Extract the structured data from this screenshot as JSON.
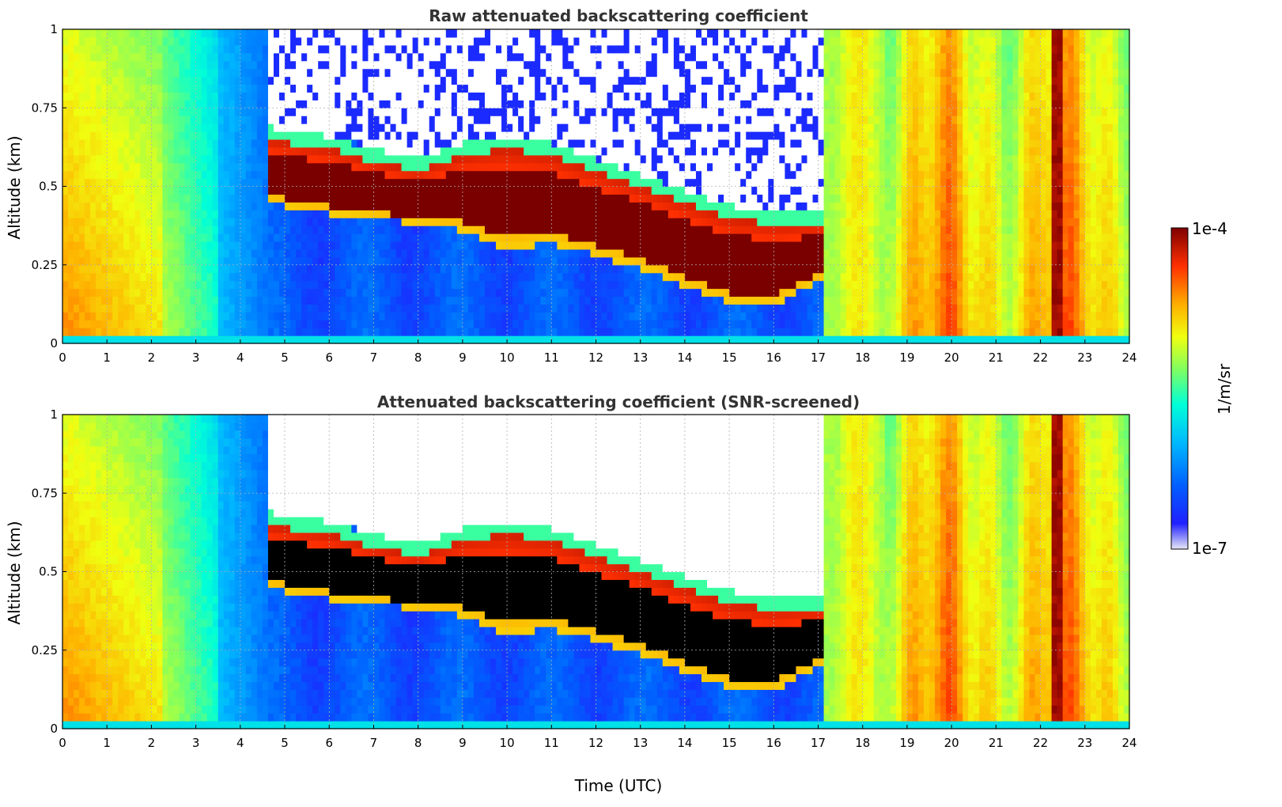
{
  "chart_data": [
    {
      "type": "heatmap",
      "title": "Raw attenuated backscattering coefficient",
      "xlabel": "",
      "ylabel": "Altitude (km)",
      "xlim": [
        0,
        24
      ],
      "ylim": [
        0,
        1
      ],
      "xticks": [
        "0",
        "1",
        "2",
        "3",
        "4",
        "5",
        "6",
        "7",
        "8",
        "9",
        "10",
        "11",
        "12",
        "13",
        "14",
        "15",
        "16",
        "17",
        "18",
        "19",
        "20",
        "21",
        "22",
        "23",
        "24"
      ],
      "yticks": [
        "0",
        "0.25",
        "0.5",
        "0.75",
        "1"
      ],
      "grid": true,
      "screened": false,
      "cloud_base_km": [
        {
          "t": 4.6,
          "z": 0.45
        },
        {
          "t": 5.5,
          "z": 0.42
        },
        {
          "t": 7.0,
          "z": 0.4
        },
        {
          "t": 8.0,
          "z": 0.38
        },
        {
          "t": 9.0,
          "z": 0.36
        },
        {
          "t": 10.0,
          "z": 0.3
        },
        {
          "t": 11.0,
          "z": 0.32
        },
        {
          "t": 12.0,
          "z": 0.28
        },
        {
          "t": 13.0,
          "z": 0.24
        },
        {
          "t": 14.0,
          "z": 0.18
        },
        {
          "t": 15.0,
          "z": 0.13
        },
        {
          "t": 16.0,
          "z": 0.12
        },
        {
          "t": 17.0,
          "z": 0.2
        }
      ],
      "cloud_top_km": [
        {
          "t": 4.6,
          "z": 0.65
        },
        {
          "t": 6.0,
          "z": 0.62
        },
        {
          "t": 7.0,
          "z": 0.58
        },
        {
          "t": 8.0,
          "z": 0.55
        },
        {
          "t": 9.0,
          "z": 0.6
        },
        {
          "t": 10.0,
          "z": 0.62
        },
        {
          "t": 11.0,
          "z": 0.6
        },
        {
          "t": 12.0,
          "z": 0.55
        },
        {
          "t": 13.0,
          "z": 0.5
        },
        {
          "t": 14.0,
          "z": 0.45
        },
        {
          "t": 15.0,
          "z": 0.4
        },
        {
          "t": 16.0,
          "z": 0.38
        },
        {
          "t": 17.0,
          "z": 0.38
        }
      ]
    },
    {
      "type": "heatmap",
      "title": "Attenuated backscattering coefficient (SNR-screened)",
      "xlabel": "Time (UTC)",
      "ylabel": "Altitude (km)",
      "xlim": [
        0,
        24
      ],
      "ylim": [
        0,
        1
      ],
      "xticks": [
        "0",
        "1",
        "2",
        "3",
        "4",
        "5",
        "6",
        "7",
        "8",
        "9",
        "10",
        "11",
        "12",
        "13",
        "14",
        "15",
        "16",
        "17",
        "18",
        "19",
        "20",
        "21",
        "22",
        "23",
        "24"
      ],
      "yticks": [
        "0",
        "0.25",
        "0.5",
        "0.75",
        "1"
      ],
      "grid": true,
      "screened": true
    }
  ],
  "colorbar": {
    "min_label": "1e-7",
    "max_label": "1e-4",
    "unit_label": "1/m/sr",
    "scale": "log",
    "range": [
      1e-07,
      0.0001
    ]
  },
  "colors": {
    "saturated": "#7a0000",
    "screened_saturated": "#000000",
    "no_signal": "#ffffff",
    "colormap": [
      "#e8e8f8",
      "#0010ff",
      "#0090ff",
      "#00e8ff",
      "#60ff90",
      "#e8ff20",
      "#ffb000",
      "#ff3000",
      "#900000"
    ]
  }
}
